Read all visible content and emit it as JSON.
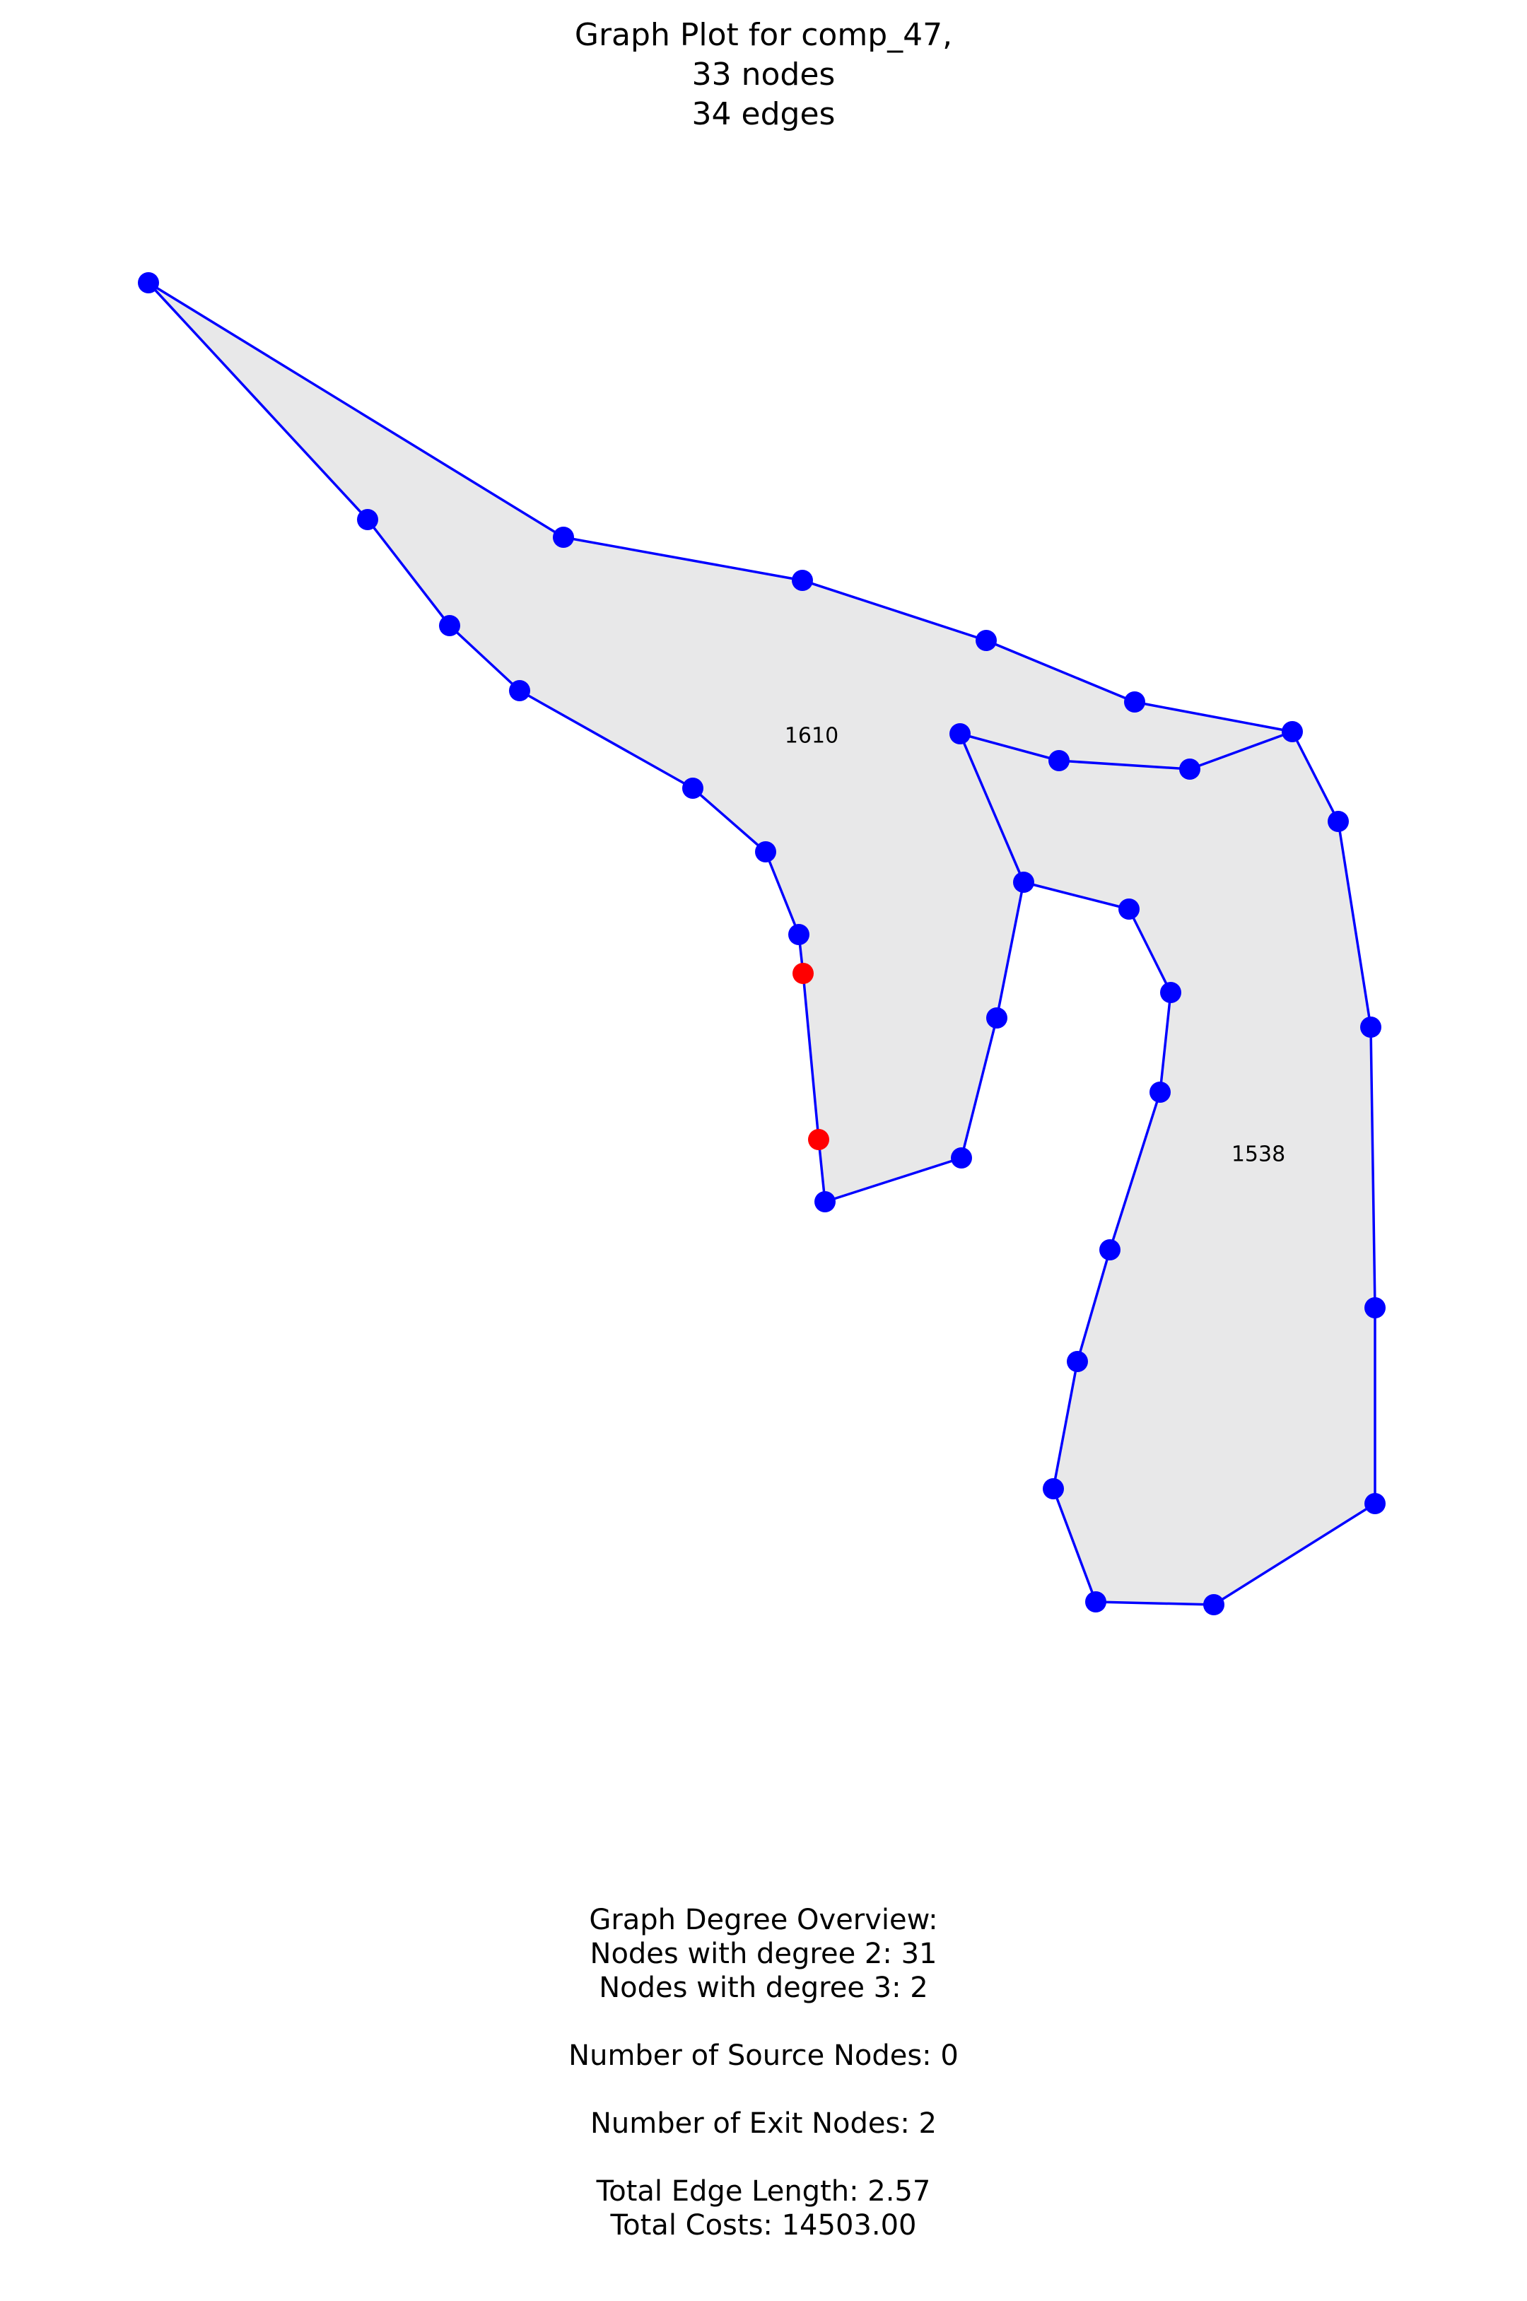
{
  "title": {
    "line1": "Graph Plot for comp_47,",
    "line2": "33 nodes",
    "line3": "34 edges"
  },
  "colors": {
    "node": "#0000ff",
    "exit_node": "#ff0000",
    "edge": "#0000ff",
    "face_fill": "#e8e8e9"
  },
  "face_labels": [
    "1610",
    "1538"
  ],
  "overview": {
    "heading": "Graph Degree Overview:",
    "degree2": "Nodes with degree 2: 31",
    "degree3": "Nodes with degree 3: 2",
    "source_nodes": "Number of Source Nodes: 0",
    "exit_nodes": "Number of Exit Nodes: 2",
    "edge_length": "Total Edge Length: 2.57",
    "total_costs": "Total Costs: 14503.00"
  }
}
